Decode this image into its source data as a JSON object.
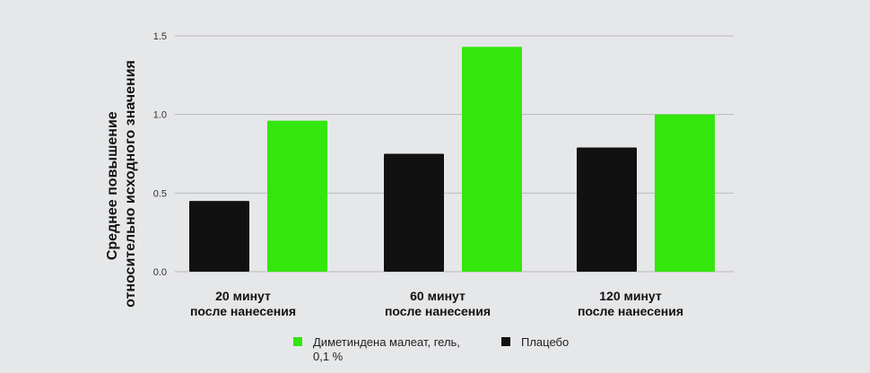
{
  "chart_data": {
    "type": "bar",
    "categories": [
      [
        "20 минут",
        "после нанесения"
      ],
      [
        "60 минут",
        "после нанесения"
      ],
      [
        "120 минут",
        "после нанесения"
      ]
    ],
    "series": [
      {
        "name": "Плацебо",
        "color": "#111111",
        "values": [
          0.45,
          0.75,
          0.79
        ]
      },
      {
        "name": "Диметиндена малеат, гель, 0,1 %",
        "color": "#33e60c",
        "values": [
          0.96,
          1.43,
          1.0
        ]
      }
    ],
    "ylabel": [
      "Среднее повышение",
      "относительно исходного значения"
    ],
    "yticks": [
      "0.0",
      "0.5",
      "1.0",
      "1.5"
    ],
    "ylim": [
      0,
      1.5
    ],
    "grid": true,
    "legend": {
      "placement": "bottom",
      "entries": [
        {
          "lines": [
            "Диметиндена малеат, гель,",
            "0,1 %"
          ],
          "color": "#33e60c"
        },
        {
          "lines": [
            "Плацебо"
          ],
          "color": "#111111"
        }
      ]
    }
  }
}
